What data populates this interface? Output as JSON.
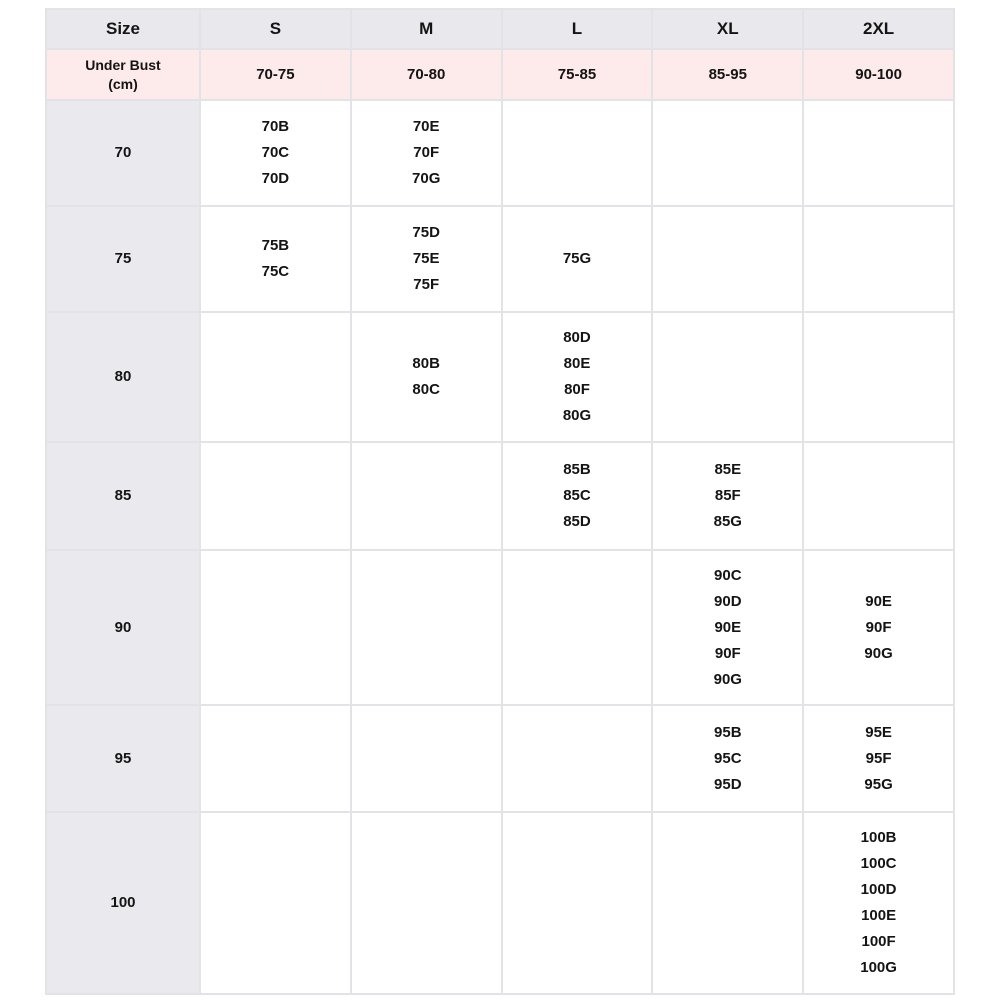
{
  "table": {
    "colors": {
      "header_bg": "#e9e9ed",
      "under_bust_bg": "#fdeaea",
      "size_col_bg": "#eaeaee",
      "border_color": "#e3e3e7",
      "text_color": "#141414",
      "page_bg": "#ffffff"
    },
    "header": {
      "size": "Size",
      "s": "S",
      "m": "M",
      "l": "L",
      "xl": "XL",
      "xxl": "2XL"
    },
    "under_bust": {
      "label": "Under Bust\n(cm)",
      "ranges": {
        "S": "70-75",
        "M": "70-80",
        "L": "75-85",
        "XL": "85-95",
        "XXL": "90-100"
      }
    },
    "rows": [
      {
        "size": "70",
        "cells": {
          "S": [
            "70B",
            "70C",
            "70D"
          ],
          "M": [
            "70E",
            "70F",
            "70G"
          ],
          "L": [],
          "XL": [],
          "XXL": []
        }
      },
      {
        "size": "75",
        "cells": {
          "S": [
            "75B",
            "75C"
          ],
          "M": [
            "75D",
            "75E",
            "75F"
          ],
          "L": [
            "75G"
          ],
          "XL": [],
          "XXL": []
        }
      },
      {
        "size": "80",
        "cells": {
          "S": [],
          "M": [
            "80B",
            "80C"
          ],
          "L": [
            "80D",
            "80E",
            "80F",
            "80G"
          ],
          "XL": [],
          "XXL": []
        }
      },
      {
        "size": "85",
        "cells": {
          "S": [],
          "M": [],
          "L": [
            "85B",
            "85C",
            "85D"
          ],
          "XL": [
            "85E",
            "85F",
            "85G"
          ],
          "XXL": []
        }
      },
      {
        "size": "90",
        "cells": {
          "S": [],
          "M": [],
          "L": [],
          "XL": [
            "90C",
            "90D",
            "90E",
            "90F",
            "90G"
          ],
          "XXL": [
            "90E",
            "90F",
            "90G"
          ]
        }
      },
      {
        "size": "95",
        "cells": {
          "S": [],
          "M": [],
          "L": [],
          "XL": [
            "95B",
            "95C",
            "95D"
          ],
          "XXL": [
            "95E",
            "95F",
            "95G"
          ]
        }
      },
      {
        "size": "100",
        "cells": {
          "S": [],
          "M": [],
          "L": [],
          "XL": [],
          "XXL": [
            "100B",
            "100C",
            "100D",
            "100E",
            "100F",
            "100G"
          ]
        }
      }
    ]
  }
}
